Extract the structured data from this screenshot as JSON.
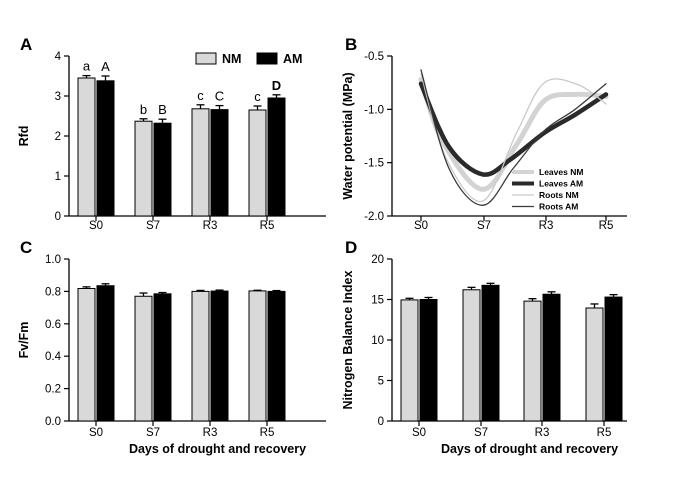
{
  "colors": {
    "NM": "#d9d9d9",
    "AM": "#000000",
    "axis": "#000000"
  },
  "chart_data": [
    {
      "panel": "A",
      "type": "bar",
      "title": "",
      "xlabel": "",
      "ylabel": "Rfd",
      "ylim": [
        0,
        4
      ],
      "yticks": [
        0,
        1,
        2,
        3,
        4
      ],
      "categories": [
        "S0",
        "S7",
        "R3",
        "R5"
      ],
      "legend": {
        "position": "top-right",
        "entries": [
          "NM",
          "AM"
        ]
      },
      "series": [
        {
          "name": "NM",
          "values": [
            3.45,
            2.37,
            2.68,
            2.65
          ],
          "errors": [
            0.06,
            0.06,
            0.1,
            0.1
          ],
          "sig": [
            "a",
            "b",
            "c",
            "c"
          ]
        },
        {
          "name": "AM",
          "values": [
            3.38,
            2.32,
            2.66,
            2.95
          ],
          "errors": [
            0.12,
            0.1,
            0.1,
            0.08
          ],
          "sig": [
            "A",
            "B",
            "C",
            "D"
          ]
        }
      ]
    },
    {
      "panel": "B",
      "type": "line",
      "title": "",
      "xlabel": "",
      "ylabel": "Water potential (MPa)",
      "ylim": [
        -2.0,
        -0.5
      ],
      "yticks": [
        -2.0,
        -1.5,
        -1.0,
        -0.5
      ],
      "ytick_labels": [
        "-2.0",
        "-1.5",
        "-1.0",
        "-0.5"
      ],
      "categories": [
        "S0",
        "S7",
        "R3",
        "R5"
      ],
      "legend": {
        "position": "bottom-right"
      },
      "series": [
        {
          "name": "Leaves NM",
          "color": "#d3d3d3",
          "width": 5,
          "points": [
            [
              0,
              -0.72
            ],
            [
              0.35,
              -1.3
            ],
            [
              1,
              -1.75
            ],
            [
              1.55,
              -1.33
            ],
            [
              2,
              -0.92
            ],
            [
              2.5,
              -0.86
            ],
            [
              3,
              -0.88
            ]
          ]
        },
        {
          "name": "Leaves AM",
          "color": "#2a2a2a",
          "width": 4.5,
          "points": [
            [
              0,
              -0.76
            ],
            [
              0.45,
              -1.35
            ],
            [
              1,
              -1.61
            ],
            [
              1.45,
              -1.47
            ],
            [
              2,
              -1.22
            ],
            [
              2.5,
              -1.05
            ],
            [
              3,
              -0.86
            ]
          ]
        },
        {
          "name": "Roots NM",
          "color": "#c9c9c9",
          "width": 1.3,
          "points": [
            [
              0,
              -0.67
            ],
            [
              0.4,
              -1.45
            ],
            [
              1,
              -1.86
            ],
            [
              1.55,
              -1.22
            ],
            [
              2,
              -0.75
            ],
            [
              2.55,
              -0.77
            ],
            [
              3,
              -0.95
            ]
          ]
        },
        {
          "name": "Roots AM",
          "color": "#3a3a3a",
          "width": 1.3,
          "points": [
            [
              0,
              -0.63
            ],
            [
              0.45,
              -1.55
            ],
            [
              1,
              -1.9
            ],
            [
              1.5,
              -1.55
            ],
            [
              2,
              -1.2
            ],
            [
              2.5,
              -1.0
            ],
            [
              3,
              -0.76
            ]
          ]
        }
      ]
    },
    {
      "panel": "C",
      "type": "bar",
      "title": "",
      "xlabel": "Days of drought and recovery",
      "ylabel": "Fv/Fm",
      "ylim": [
        0,
        1.0
      ],
      "yticks": [
        0,
        0.2,
        0.4,
        0.6,
        0.8,
        1.0
      ],
      "ytick_labels": [
        "0.0",
        "0.2",
        "0.4",
        "0.6",
        "0.8",
        "1.0"
      ],
      "categories": [
        "S0",
        "S7",
        "R3",
        "R5"
      ],
      "series": [
        {
          "name": "NM",
          "values": [
            0.818,
            0.77,
            0.8,
            0.803
          ],
          "errors": [
            0.01,
            0.02,
            0.006,
            0.004
          ]
        },
        {
          "name": "AM",
          "values": [
            0.835,
            0.785,
            0.802,
            0.8
          ],
          "errors": [
            0.012,
            0.008,
            0.006,
            0.005
          ]
        }
      ]
    },
    {
      "panel": "D",
      "type": "bar",
      "title": "",
      "xlabel": "Days of drought and recovery",
      "ylabel": "Nitrogen Balance Index",
      "ylim": [
        0,
        20
      ],
      "yticks": [
        0,
        5,
        10,
        15,
        20
      ],
      "categories": [
        "S0",
        "S7",
        "R3",
        "R5"
      ],
      "series": [
        {
          "name": "NM",
          "values": [
            14.95,
            16.2,
            14.8,
            13.95
          ],
          "errors": [
            0.2,
            0.3,
            0.3,
            0.5
          ]
        },
        {
          "name": "AM",
          "values": [
            15.0,
            16.75,
            15.65,
            15.3
          ],
          "errors": [
            0.25,
            0.25,
            0.3,
            0.3
          ]
        }
      ]
    }
  ]
}
